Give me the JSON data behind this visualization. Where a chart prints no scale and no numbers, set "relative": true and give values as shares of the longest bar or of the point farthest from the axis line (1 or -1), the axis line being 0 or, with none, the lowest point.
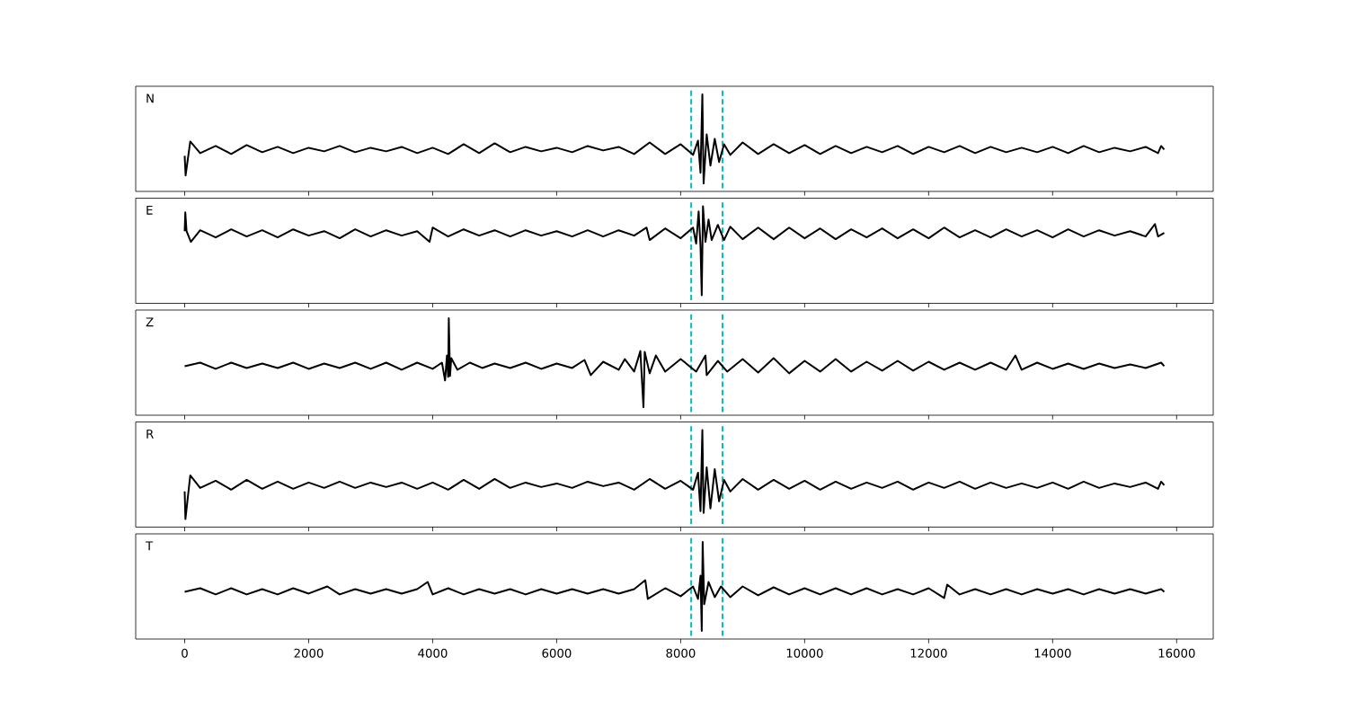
{
  "chart_data": [
    {
      "type": "line",
      "title": "N",
      "relative": true,
      "xlim": [
        -790,
        16590
      ],
      "xticks": [
        0,
        2000,
        4000,
        6000,
        8000,
        10000,
        12000,
        14000,
        16000
      ],
      "tick_labels": false,
      "ref_lines": [
        {
          "axis": "x",
          "value": 8170,
          "color": "#00bfbf",
          "line_style": "dashed"
        },
        {
          "axis": "x",
          "value": 8675,
          "color": "#00bfbf",
          "line_style": "dashed"
        }
      ],
      "x": [
        0,
        15,
        90,
        250,
        500,
        750,
        1000,
        1250,
        1500,
        1750,
        2000,
        2250,
        2500,
        2750,
        3000,
        3250,
        3500,
        3750,
        4000,
        4250,
        4500,
        4750,
        5000,
        5250,
        5500,
        5750,
        6000,
        6250,
        6500,
        6750,
        7000,
        7250,
        7500,
        7750,
        8000,
        8200,
        8280,
        8320,
        8350,
        8370,
        8420,
        8480,
        8550,
        8620,
        8700,
        8800,
        9000,
        9250,
        9500,
        9750,
        10000,
        10250,
        10500,
        10750,
        11000,
        11250,
        11500,
        11750,
        12000,
        12250,
        12500,
        12750,
        13000,
        13250,
        13500,
        13750,
        14000,
        14250,
        14500,
        14750,
        15000,
        15250,
        15500,
        15700,
        15750,
        15800
      ],
      "series": [
        {
          "color": "#000000",
          "values": [
            0.31,
            0.09,
            0.47,
            0.34,
            0.42,
            0.33,
            0.43,
            0.35,
            0.41,
            0.34,
            0.4,
            0.36,
            0.42,
            0.35,
            0.4,
            0.36,
            0.41,
            0.34,
            0.4,
            0.33,
            0.44,
            0.34,
            0.45,
            0.35,
            0.41,
            0.36,
            0.4,
            0.35,
            0.42,
            0.37,
            0.41,
            0.33,
            0.46,
            0.33,
            0.44,
            0.32,
            0.48,
            0.12,
            1,
            0,
            0.55,
            0.2,
            0.5,
            0.24,
            0.44,
            0.32,
            0.46,
            0.33,
            0.44,
            0.34,
            0.43,
            0.33,
            0.42,
            0.34,
            0.41,
            0.35,
            0.42,
            0.33,
            0.41,
            0.35,
            0.42,
            0.34,
            0.41,
            0.35,
            0.4,
            0.35,
            0.41,
            0.34,
            0.42,
            0.35,
            0.4,
            0.36,
            0.41,
            0.34,
            0.42,
            0.38
          ]
        }
      ]
    },
    {
      "type": "line",
      "title": "E",
      "relative": true,
      "xlim": [
        -790,
        16590
      ],
      "xticks": [
        0,
        2000,
        4000,
        6000,
        8000,
        10000,
        12000,
        14000,
        16000
      ],
      "tick_labels": false,
      "ref_lines": [
        {
          "axis": "x",
          "value": 8170,
          "color": "#00bfbf",
          "line_style": "dashed"
        },
        {
          "axis": "x",
          "value": 8675,
          "color": "#00bfbf",
          "line_style": "dashed"
        }
      ],
      "x": [
        0,
        10,
        30,
        100,
        250,
        500,
        750,
        1000,
        1250,
        1500,
        1750,
        2000,
        2250,
        2500,
        2750,
        3000,
        3250,
        3500,
        3750,
        3950,
        4000,
        4250,
        4500,
        4750,
        5000,
        5250,
        5500,
        5750,
        6000,
        6250,
        6500,
        6750,
        7000,
        7250,
        7450,
        7500,
        7750,
        8000,
        8200,
        8250,
        8290,
        8320,
        8340,
        8360,
        8400,
        8450,
        8500,
        8600,
        8700,
        8800,
        9000,
        9250,
        9500,
        9750,
        10000,
        10250,
        10500,
        10750,
        11000,
        11250,
        11500,
        11750,
        12000,
        12250,
        12500,
        12750,
        13000,
        13250,
        13500,
        13750,
        14000,
        14250,
        14500,
        14750,
        15000,
        15250,
        15500,
        15650,
        15700,
        15800
      ],
      "series": [
        {
          "color": "#000000",
          "values": [
            0.72,
            0.93,
            0.72,
            0.6,
            0.73,
            0.65,
            0.74,
            0.66,
            0.73,
            0.65,
            0.74,
            0.67,
            0.72,
            0.64,
            0.74,
            0.66,
            0.73,
            0.67,
            0.72,
            0.6,
            0.76,
            0.66,
            0.74,
            0.67,
            0.73,
            0.66,
            0.73,
            0.67,
            0.72,
            0.66,
            0.73,
            0.66,
            0.73,
            0.67,
            0.76,
            0.62,
            0.75,
            0.64,
            0.76,
            0.58,
            0.94,
            0.55,
            0,
            1,
            0.6,
            0.85,
            0.62,
            0.79,
            0.62,
            0.77,
            0.63,
            0.76,
            0.63,
            0.76,
            0.64,
            0.75,
            0.63,
            0.74,
            0.65,
            0.75,
            0.64,
            0.74,
            0.64,
            0.76,
            0.65,
            0.73,
            0.65,
            0.74,
            0.66,
            0.73,
            0.65,
            0.74,
            0.66,
            0.73,
            0.67,
            0.72,
            0.66,
            0.8,
            0.66,
            0.7
          ]
        }
      ]
    },
    {
      "type": "line",
      "title": "Z",
      "relative": true,
      "xlim": [
        -790,
        16590
      ],
      "xticks": [
        0,
        2000,
        4000,
        6000,
        8000,
        10000,
        12000,
        14000,
        16000
      ],
      "tick_labels": false,
      "ref_lines": [
        {
          "axis": "x",
          "value": 8170,
          "color": "#00bfbf",
          "line_style": "dashed"
        },
        {
          "axis": "x",
          "value": 8675,
          "color": "#00bfbf",
          "line_style": "dashed"
        }
      ],
      "x": [
        0,
        250,
        500,
        750,
        1000,
        1250,
        1500,
        1750,
        2000,
        2250,
        2500,
        2750,
        3000,
        3250,
        3500,
        3750,
        4000,
        4150,
        4200,
        4230,
        4250,
        4260,
        4280,
        4300,
        4400,
        4600,
        4800,
        5000,
        5250,
        5500,
        5750,
        6000,
        6250,
        6450,
        6550,
        6750,
        7000,
        7100,
        7250,
        7350,
        7400,
        7420,
        7500,
        7600,
        7750,
        8000,
        8250,
        8400,
        8420,
        8600,
        8750,
        9000,
        9250,
        9500,
        9750,
        10000,
        10250,
        10500,
        10750,
        11000,
        11250,
        11500,
        11750,
        12000,
        12250,
        12500,
        12750,
        13000,
        13250,
        13400,
        13500,
        13750,
        14000,
        14250,
        14500,
        14750,
        15000,
        15250,
        15500,
        15750,
        15800
      ],
      "series": [
        {
          "color": "#000000",
          "values": [
            0.46,
            0.5,
            0.43,
            0.5,
            0.44,
            0.49,
            0.44,
            0.5,
            0.43,
            0.49,
            0.44,
            0.5,
            0.43,
            0.5,
            0.42,
            0.5,
            0.43,
            0.5,
            0.3,
            0.58,
            0.34,
            1,
            0.35,
            0.55,
            0.42,
            0.5,
            0.44,
            0.49,
            0.44,
            0.5,
            0.43,
            0.49,
            0.44,
            0.53,
            0.36,
            0.51,
            0.42,
            0.54,
            0.4,
            0.63,
            0,
            0.62,
            0.38,
            0.58,
            0.4,
            0.54,
            0.4,
            0.58,
            0.36,
            0.52,
            0.4,
            0.54,
            0.39,
            0.55,
            0.38,
            0.52,
            0.4,
            0.54,
            0.4,
            0.51,
            0.41,
            0.52,
            0.41,
            0.51,
            0.42,
            0.5,
            0.42,
            0.5,
            0.42,
            0.58,
            0.42,
            0.5,
            0.43,
            0.49,
            0.43,
            0.49,
            0.44,
            0.48,
            0.44,
            0.5,
            0.46
          ]
        }
      ]
    },
    {
      "type": "line",
      "title": "R",
      "relative": true,
      "xlim": [
        -790,
        16590
      ],
      "xticks": [
        0,
        2000,
        4000,
        6000,
        8000,
        10000,
        12000,
        14000,
        16000
      ],
      "tick_labels": false,
      "ref_lines": [
        {
          "axis": "x",
          "value": 8170,
          "color": "#00bfbf",
          "line_style": "dashed"
        },
        {
          "axis": "x",
          "value": 8675,
          "color": "#00bfbf",
          "line_style": "dashed"
        }
      ],
      "x": [
        0,
        12,
        90,
        250,
        500,
        750,
        1000,
        1250,
        1500,
        1750,
        2000,
        2250,
        2500,
        2750,
        3000,
        3250,
        3500,
        3750,
        4000,
        4250,
        4500,
        4750,
        5000,
        5250,
        5500,
        5750,
        6000,
        6250,
        6500,
        6750,
        7000,
        7250,
        7500,
        7750,
        8000,
        8200,
        8280,
        8320,
        8350,
        8370,
        8420,
        8480,
        8550,
        8620,
        8700,
        8800,
        9000,
        9250,
        9500,
        9750,
        10000,
        10250,
        10500,
        10750,
        11000,
        11250,
        11500,
        11750,
        12000,
        12250,
        12500,
        12750,
        13000,
        13250,
        13500,
        13750,
        14000,
        14250,
        14500,
        14750,
        15000,
        15250,
        15500,
        15700,
        15750,
        15800
      ],
      "series": [
        {
          "color": "#000000",
          "values": [
            0.31,
            0,
            0.49,
            0.35,
            0.43,
            0.33,
            0.44,
            0.34,
            0.42,
            0.34,
            0.41,
            0.35,
            0.42,
            0.35,
            0.41,
            0.36,
            0.41,
            0.34,
            0.41,
            0.33,
            0.44,
            0.34,
            0.45,
            0.35,
            0.41,
            0.36,
            0.4,
            0.35,
            0.42,
            0.37,
            0.41,
            0.33,
            0.45,
            0.34,
            0.43,
            0.33,
            0.52,
            0.09,
            1,
            0.07,
            0.58,
            0.12,
            0.56,
            0.2,
            0.44,
            0.31,
            0.45,
            0.33,
            0.44,
            0.34,
            0.43,
            0.33,
            0.42,
            0.34,
            0.41,
            0.35,
            0.42,
            0.33,
            0.41,
            0.35,
            0.42,
            0.34,
            0.41,
            0.35,
            0.4,
            0.35,
            0.41,
            0.34,
            0.42,
            0.35,
            0.4,
            0.36,
            0.41,
            0.34,
            0.42,
            0.38
          ]
        }
      ]
    },
    {
      "type": "line",
      "title": "T",
      "relative": true,
      "xlim": [
        -790,
        16590
      ],
      "xticks": [
        0,
        2000,
        4000,
        6000,
        8000,
        10000,
        12000,
        14000,
        16000
      ],
      "tick_labels": "x",
      "ref_lines": [
        {
          "axis": "x",
          "value": 8170,
          "color": "#00bfbf",
          "line_style": "dashed"
        },
        {
          "axis": "x",
          "value": 8675,
          "color": "#00bfbf",
          "line_style": "dashed"
        }
      ],
      "x": [
        0,
        250,
        500,
        750,
        1000,
        1250,
        1500,
        1750,
        2000,
        2300,
        2500,
        2750,
        3000,
        3250,
        3500,
        3750,
        3920,
        4000,
        4250,
        4500,
        4750,
        5000,
        5250,
        5500,
        5750,
        6000,
        6250,
        6500,
        6750,
        7000,
        7250,
        7430,
        7470,
        7750,
        8000,
        8200,
        8280,
        8320,
        8340,
        8355,
        8380,
        8450,
        8550,
        8650,
        8800,
        9000,
        9250,
        9500,
        9750,
        10000,
        10250,
        10500,
        10750,
        11000,
        11250,
        11500,
        11750,
        12000,
        12250,
        12300,
        12500,
        12750,
        13000,
        13250,
        13500,
        13750,
        14000,
        14250,
        14500,
        14750,
        15000,
        15250,
        15500,
        15750,
        15800
      ],
      "series": [
        {
          "color": "#000000",
          "values": [
            0.44,
            0.48,
            0.41,
            0.48,
            0.41,
            0.47,
            0.41,
            0.48,
            0.42,
            0.5,
            0.41,
            0.47,
            0.42,
            0.47,
            0.42,
            0.47,
            0.55,
            0.41,
            0.48,
            0.41,
            0.47,
            0.42,
            0.47,
            0.41,
            0.47,
            0.42,
            0.47,
            0.42,
            0.47,
            0.42,
            0.47,
            0.57,
            0.36,
            0.48,
            0.39,
            0.5,
            0.36,
            0.62,
            0,
            1,
            0.3,
            0.55,
            0.38,
            0.5,
            0.38,
            0.5,
            0.4,
            0.49,
            0.41,
            0.48,
            0.41,
            0.48,
            0.41,
            0.48,
            0.41,
            0.47,
            0.41,
            0.48,
            0.37,
            0.52,
            0.41,
            0.47,
            0.41,
            0.47,
            0.41,
            0.47,
            0.42,
            0.47,
            0.41,
            0.47,
            0.42,
            0.47,
            0.42,
            0.47,
            0.44
          ]
        }
      ]
    }
  ]
}
